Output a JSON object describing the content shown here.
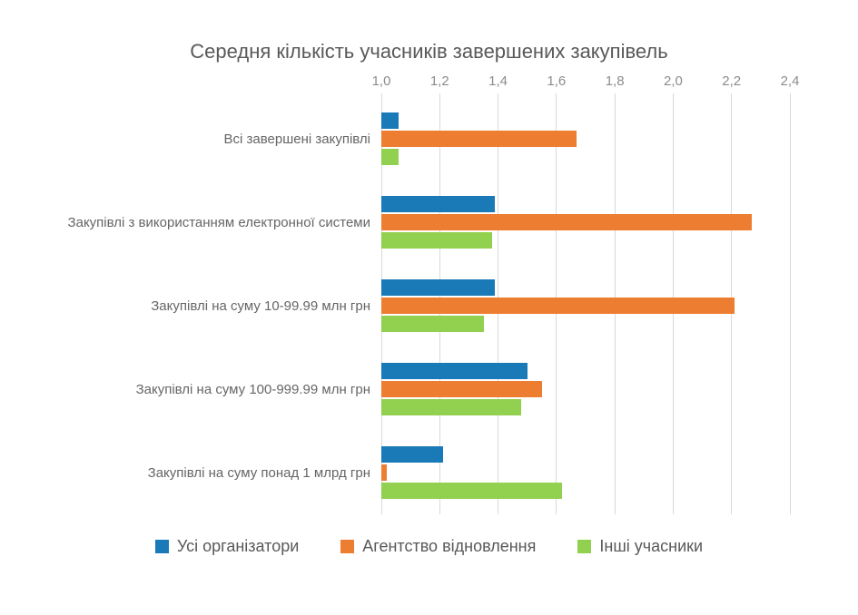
{
  "chart_data": {
    "type": "bar",
    "orientation": "horizontal",
    "title": "Середня кількість учасників завершених закупівель",
    "categories": [
      "Всі завершені закупівлі",
      "Закупівлі з використанням електронної системи",
      "Закупівлі на суму 10-99.99 млн грн",
      "Закупівлі на суму 100-999.99 млн грн",
      "Закупівлі на суму понад 1 млрд грн"
    ],
    "series": [
      {
        "name": "Усі організатори",
        "color": "#1A7AB8",
        "values": [
          1.06,
          1.39,
          1.39,
          1.5,
          1.21
        ]
      },
      {
        "name": "Агентство відновлення",
        "color": "#ED7D31",
        "values": [
          1.67,
          2.27,
          2.21,
          1.55,
          1.02
        ]
      },
      {
        "name": "Інші учасники",
        "color": "#92D050",
        "values": [
          1.06,
          1.38,
          1.35,
          1.48,
          1.62
        ]
      }
    ],
    "xlim": [
      1.0,
      2.4
    ],
    "tick_values": [
      1.0,
      1.2,
      1.4,
      1.6,
      1.8,
      2.0,
      2.2,
      2.4
    ],
    "tick_labels": [
      "1,0",
      "1,2",
      "1,4",
      "1,6",
      "1,8",
      "2,0",
      "2,2",
      "2,4"
    ],
    "grid": true,
    "legend_position": "bottom",
    "colors": {
      "title": "#595959",
      "axis_label": "#8C8C8C",
      "category_label": "#666666",
      "gridline": "#D9D9D9",
      "background": "#FFFFFF"
    }
  }
}
